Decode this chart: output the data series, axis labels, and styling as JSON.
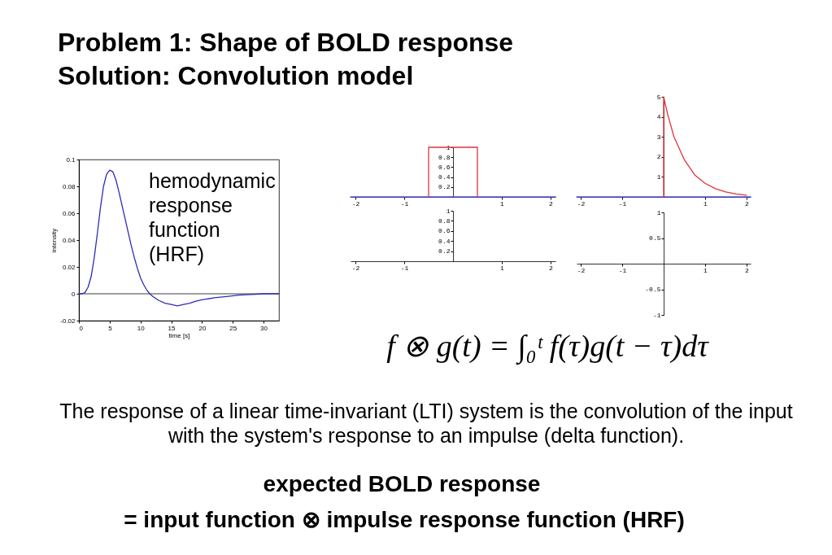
{
  "chart_data": [
    {
      "type": "other",
      "title": "Problem 1: Shape of BOLD response",
      "subtitle": "Solution: Convolution model"
    },
    {
      "type": "line",
      "x": [
        0,
        0.5,
        1,
        1.5,
        2,
        2.5,
        3,
        3.5,
        4,
        4.5,
        5,
        5.5,
        6,
        6.5,
        7,
        7.5,
        8,
        8.5,
        9,
        9.5,
        10,
        10.5,
        11,
        11.5,
        12,
        13,
        14,
        15,
        16,
        17,
        18,
        19,
        20,
        22,
        24,
        26,
        28,
        30,
        32.5
      ],
      "values": [
        0,
        0,
        0.001,
        0.005,
        0.013,
        0.027,
        0.045,
        0.064,
        0.08,
        0.089,
        0.092,
        0.091,
        0.085,
        0.076,
        0.066,
        0.056,
        0.046,
        0.036,
        0.027,
        0.019,
        0.012,
        0.007,
        0.003,
        0,
        -0.002,
        -0.005,
        -0.007,
        -0.008,
        -0.009,
        -0.008,
        -0.007,
        -0.0055,
        -0.0045,
        -0.003,
        -0.002,
        -0.001,
        -0.0005,
        0,
        0
      ],
      "color": "#2d2db4",
      "xlabel": "time [s]",
      "ylabel": "intensity",
      "xlim": [
        0,
        32.5
      ],
      "ylim": [
        -0.02,
        0.1
      ],
      "xticks": [
        0,
        5,
        10,
        15,
        20,
        25,
        30
      ],
      "yticks": [
        -0.02,
        0,
        0.02,
        0.04,
        0.06,
        0.08,
        0.1
      ],
      "ref_lines": [
        {
          "axis": "y",
          "value": 0,
          "color": "#3c3c3c"
        }
      ],
      "annotations": [
        "hemodynamic response function (HRF)"
      ]
    },
    {
      "type": "line",
      "series": [
        {
          "color": "#4b4bd2",
          "x": [
            -2.1,
            2.1
          ],
          "values": [
            0,
            0
          ]
        },
        {
          "color": "#e0343c",
          "x": [
            -0.5,
            -0.5,
            0.5,
            0.5
          ],
          "values": [
            0,
            1,
            1,
            0
          ]
        }
      ],
      "xlim": [
        -2.1,
        2.1
      ],
      "ylim": [
        0,
        1
      ],
      "xticks": [
        -2,
        -1,
        1,
        2
      ],
      "yticks": [
        0.2,
        0.4,
        0.6,
        0.8,
        1
      ]
    },
    {
      "type": "line",
      "series": [
        {
          "color": "#4b4bd2",
          "x": [
            -2.1,
            2.1
          ],
          "values": [
            0,
            0
          ]
        },
        {
          "color": "#e0343c",
          "x": [
            0,
            0,
            0.1,
            0.25,
            0.5,
            0.75,
            1,
            1.25,
            1.5,
            1.75,
            2
          ],
          "values": [
            0,
            5,
            4.1,
            3,
            1.85,
            1.1,
            0.68,
            0.41,
            0.25,
            0.15,
            0.09
          ]
        }
      ],
      "xlim": [
        -2.1,
        2.1
      ],
      "ylim": [
        0,
        5
      ],
      "xticks": [
        -2,
        -1,
        1,
        2
      ],
      "yticks": [
        1,
        2,
        3,
        4,
        5
      ]
    },
    {
      "type": "line",
      "xlim": [
        -2.1,
        2.1
      ],
      "ylim": [
        0,
        1
      ],
      "xticks": [
        -2,
        -1,
        1,
        2
      ],
      "yticks": [
        0.2,
        0.4,
        0.6,
        0.8,
        1
      ]
    },
    {
      "type": "line",
      "xlim": [
        -2.1,
        2.1
      ],
      "ylim": [
        -1,
        1
      ],
      "xticks": [
        -2,
        -1,
        1,
        2
      ],
      "yticks": [
        -1,
        -0.5,
        0.5,
        1
      ]
    },
    {
      "type": "other",
      "annotations": [
        "f ⊗ g(t) = ∫₀ᵗ f(τ)g(t − τ)dτ",
        "The response of a linear time-invariant (LTI) system is the convolution of the input with the system's response to an impulse (delta function).",
        "expected BOLD response",
        "= input function ⊗ impulse response function (HRF)"
      ]
    }
  ]
}
